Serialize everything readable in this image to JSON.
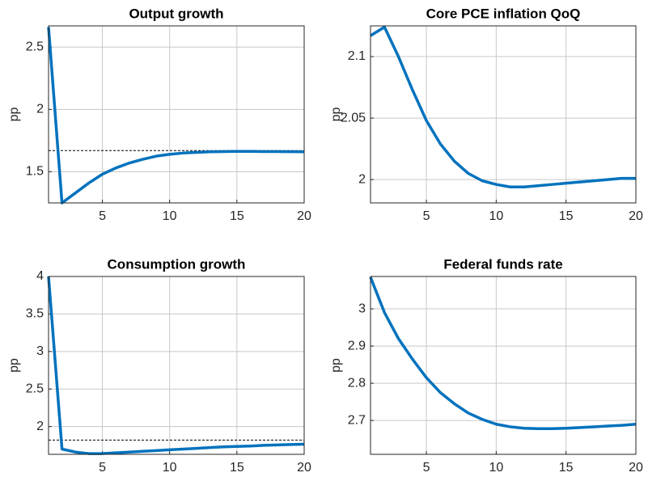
{
  "chart_data": [
    {
      "type": "line",
      "title": "Output growth",
      "ylabel": "pp",
      "x": [
        1,
        2,
        3,
        4,
        5,
        6,
        7,
        8,
        9,
        10,
        11,
        12,
        13,
        14,
        15,
        16,
        17,
        18,
        19,
        20
      ],
      "series": [
        {
          "color": "#0072bd",
          "values": [
            2.66,
            1.25,
            1.33,
            1.41,
            1.48,
            1.53,
            1.57,
            1.6,
            1.625,
            1.64,
            1.65,
            1.655,
            1.66,
            1.662,
            1.663,
            1.663,
            1.662,
            1.662,
            1.661,
            1.66
          ]
        }
      ],
      "reference": 1.67,
      "xlim": [
        1,
        20
      ],
      "xticks": [
        5,
        10,
        15,
        20
      ],
      "ylim": [
        1.25,
        2.67
      ],
      "yticks": [
        1.5,
        2,
        2.5
      ],
      "grid": true
    },
    {
      "type": "line",
      "title": "Core PCE inflation QoQ",
      "ylabel": "pp",
      "x": [
        1,
        2,
        3,
        4,
        5,
        6,
        7,
        8,
        9,
        10,
        11,
        12,
        13,
        14,
        15,
        16,
        17,
        18,
        19,
        20
      ],
      "series": [
        {
          "color": "#0072bd",
          "values": [
            2.117,
            2.124,
            2.1,
            2.073,
            2.048,
            2.029,
            2.015,
            2.005,
            1.999,
            1.996,
            1.994,
            1.994,
            1.995,
            1.996,
            1.997,
            1.998,
            1.999,
            2.0,
            2.001,
            2.001
          ]
        }
      ],
      "reference": 1.981,
      "xlim": [
        1,
        20
      ],
      "xticks": [
        5,
        10,
        15,
        20
      ],
      "ylim": [
        1.981,
        2.125
      ],
      "yticks": [
        2,
        2.05,
        2.1
      ],
      "grid": true
    },
    {
      "type": "line",
      "title": "Consumption growth",
      "ylabel": "pp",
      "x": [
        1,
        2,
        3,
        4,
        5,
        6,
        7,
        8,
        9,
        10,
        11,
        12,
        13,
        14,
        15,
        16,
        17,
        18,
        19,
        20
      ],
      "series": [
        {
          "color": "#0072bd",
          "values": [
            4.0,
            1.7,
            1.66,
            1.64,
            1.64,
            1.65,
            1.66,
            1.67,
            1.68,
            1.69,
            1.7,
            1.71,
            1.72,
            1.73,
            1.735,
            1.74,
            1.75,
            1.755,
            1.76,
            1.765
          ]
        }
      ],
      "reference": 1.82,
      "xlim": [
        1,
        20
      ],
      "xticks": [
        5,
        10,
        15,
        20
      ],
      "ylim": [
        1.63,
        4.0
      ],
      "yticks": [
        2,
        2.5,
        3,
        3.5,
        4
      ],
      "grid": true
    },
    {
      "type": "line",
      "title": "Federal funds rate",
      "ylabel": "pp",
      "x": [
        1,
        2,
        3,
        4,
        5,
        6,
        7,
        8,
        9,
        10,
        11,
        12,
        13,
        14,
        15,
        16,
        17,
        18,
        19,
        20
      ],
      "series": [
        {
          "color": "#0072bd",
          "values": [
            3.085,
            2.99,
            2.92,
            2.865,
            2.815,
            2.775,
            2.745,
            2.72,
            2.703,
            2.69,
            2.683,
            2.679,
            2.678,
            2.678,
            2.679,
            2.681,
            2.683,
            2.685,
            2.687,
            2.69
          ]
        }
      ],
      "reference": 2.609,
      "xlim": [
        1,
        20
      ],
      "xticks": [
        5,
        10,
        15,
        20
      ],
      "ylim": [
        2.609,
        3.087
      ],
      "yticks": [
        2.7,
        2.8,
        2.9,
        3
      ],
      "grid": true
    }
  ]
}
